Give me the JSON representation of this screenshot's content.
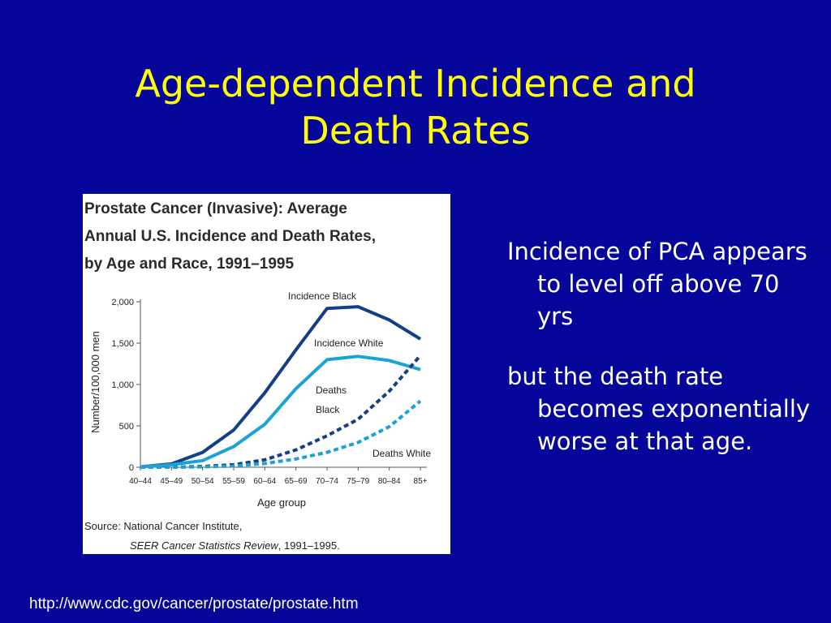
{
  "slide": {
    "title_line1": "Age-dependent Incidence and",
    "title_line2": "Death Rates",
    "bullets": [
      "Incidence of PCA appears to level off above 70 yrs",
      "but the death rate becomes exponentially worse at that age."
    ],
    "source_url": "http://www.cdc.gov/cancer/prostate/prostate.htm"
  },
  "colors": {
    "background": "#06069a",
    "title": "#ffff00",
    "text": "#ffffff",
    "black_series": "#123f86",
    "white_series": "#1aa3d4"
  },
  "chart_data": {
    "type": "line",
    "title_lines": [
      "Prostate Cancer (Invasive): Average",
      "Annual U.S. Incidence and Death Rates,",
      "by Age and Race, 1991–1995"
    ],
    "xlabel": "Age group",
    "ylabel": "Number/100,000 men",
    "ylim": [
      0,
      2000
    ],
    "yticks": [
      0,
      500,
      1000,
      1500,
      2000
    ],
    "ytick_labels": [
      "0",
      "500",
      "1,000",
      "1,500",
      "2,000"
    ],
    "categories": [
      "40–44",
      "45–49",
      "50–54",
      "55–59",
      "60–64",
      "65–69",
      "70–74",
      "75–79",
      "80–84",
      "85+"
    ],
    "series": [
      {
        "name": "Incidence Black",
        "style": "solid",
        "color_key": "black_series",
        "values": [
          5,
          40,
          180,
          450,
          900,
          1420,
          1920,
          1940,
          1780,
          1550
        ]
      },
      {
        "name": "Incidence White",
        "style": "solid",
        "color_key": "white_series",
        "values": [
          5,
          30,
          80,
          250,
          520,
          950,
          1300,
          1340,
          1290,
          1180
        ]
      },
      {
        "name": "Deaths Black",
        "style": "dashed",
        "color_key": "black_series",
        "values": [
          0,
          0,
          10,
          30,
          90,
          210,
          380,
          580,
          920,
          1350
        ]
      },
      {
        "name": "Deaths White",
        "style": "dashed",
        "color_key": "white_series",
        "values": [
          0,
          0,
          5,
          15,
          45,
          100,
          180,
          300,
          490,
          800
        ]
      }
    ],
    "series_labels": [
      {
        "text": "Incidence Black"
      },
      {
        "text": "Incidence White"
      },
      {
        "text": "Deaths"
      },
      {
        "text": "Black"
      },
      {
        "text": "Deaths White"
      }
    ],
    "source_line1": "Source: National Cancer Institute,",
    "source_line2_italic": "SEER Cancer Statistics Review",
    "source_line2_rest": ", 1991–1995."
  }
}
